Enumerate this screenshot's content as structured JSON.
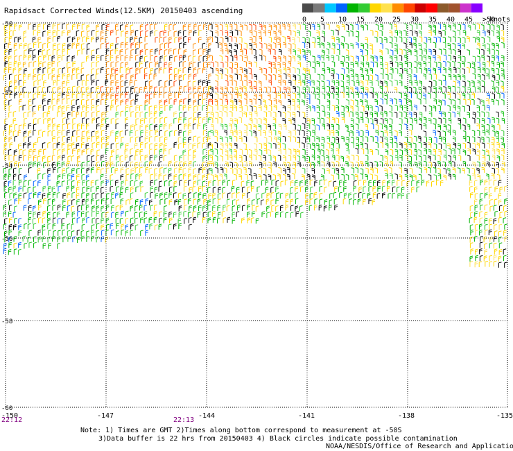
{
  "title": "Rapidsact Corrected Winds(12.5KM) 20150403 ascending",
  "legend": {
    "labels": [
      "0",
      "5",
      "10",
      "15",
      "20",
      "25",
      "30",
      "35",
      "40",
      "45",
      ">50"
    ],
    "unit": "knots",
    "colors": [
      "#4a4a4a",
      "#7a7a7a",
      "#00c8ff",
      "#0064ff",
      "#00b400",
      "#33cc33",
      "#ffd700",
      "#ffe14d",
      "#ff8c00",
      "#ff4500",
      "#cc0000",
      "#ff0000",
      "#8b5a2b",
      "#a0522d",
      "#cc33cc",
      "#8800ff"
    ]
  },
  "map": {
    "lat_labels": [
      "-50",
      "-52",
      "-54",
      "-56",
      "-58",
      "-60"
    ],
    "lon_labels": [
      "-150",
      "-147",
      "-144",
      "-141",
      "-138",
      "-135"
    ],
    "lon_times": [
      "22:12",
      "22:13"
    ]
  },
  "notes": {
    "line1": "Note: 1) Times are GMT 2)Times along bottom correspond to measurement at -50S",
    "line2": "3)Data buffer is 22 hrs from 20150403 4) Black circles indicate possible contamination",
    "line3": "NOAA/NESDIS/Office of Research and Applications"
  },
  "colors": {
    "grid": "#000000",
    "time_label": "#800080"
  }
}
